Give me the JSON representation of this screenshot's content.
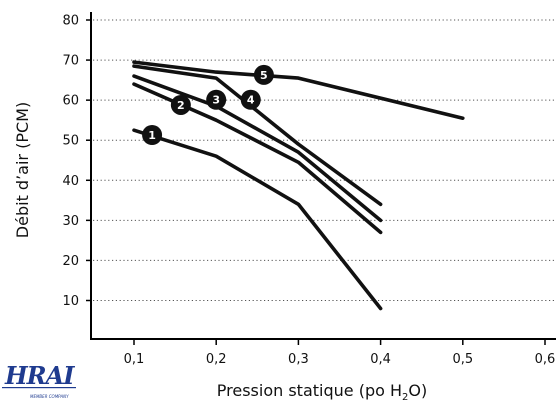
{
  "chart_data": {
    "type": "line",
    "title": "",
    "xlabel": "Pression statique (po H",
    "xlabel_sub": "2",
    "xlabel_end": "O)",
    "ylabel": "Débit d’air (PCM)",
    "xlim": [
      0.05,
      0.6
    ],
    "ylim": [
      0,
      82
    ],
    "xticks": [
      0.1,
      0.2,
      0.3,
      0.4,
      0.5,
      0.6
    ],
    "xtick_labels": [
      "0,1",
      "0,2",
      "0,3",
      "0,4",
      "0,5",
      "0,6"
    ],
    "yticks": [
      10,
      20,
      30,
      40,
      50,
      60,
      70,
      80
    ],
    "ytick_labels": [
      "10",
      "20",
      "30",
      "40",
      "50",
      "60",
      "70",
      "80"
    ],
    "grid": "horizontal-dotted",
    "series": [
      {
        "name": "1",
        "label_at": [
          0.122,
          51.3
        ],
        "points": [
          [
            0.1,
            52.5
          ],
          [
            0.2,
            46
          ],
          [
            0.3,
            34
          ],
          [
            0.4,
            8
          ]
        ]
      },
      {
        "name": "2",
        "label_at": [
          0.157,
          58.8
        ],
        "points": [
          [
            0.1,
            64
          ],
          [
            0.2,
            55
          ],
          [
            0.3,
            44.5
          ],
          [
            0.4,
            27
          ]
        ]
      },
      {
        "name": "3",
        "label_at": [
          0.2,
          60.1
        ],
        "points": [
          [
            0.1,
            66
          ],
          [
            0.2,
            58.5
          ],
          [
            0.3,
            47
          ],
          [
            0.4,
            30
          ]
        ]
      },
      {
        "name": "4",
        "label_at": [
          0.242,
          60.1
        ],
        "points": [
          [
            0.1,
            68.5
          ],
          [
            0.2,
            65.5
          ],
          [
            0.3,
            49
          ],
          [
            0.4,
            34
          ]
        ]
      },
      {
        "name": "5",
        "label_at": [
          0.258,
          66.3
        ],
        "points": [
          [
            0.1,
            69.5
          ],
          [
            0.2,
            67
          ],
          [
            0.3,
            65.5
          ],
          [
            0.5,
            55.5
          ]
        ]
      }
    ]
  },
  "logo": {
    "text": "HRAI",
    "tagline": "",
    "member": "MEMBER COMPANY"
  }
}
